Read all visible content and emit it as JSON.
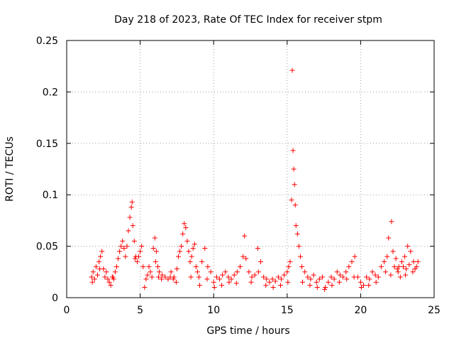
{
  "chart_data": {
    "type": "scatter",
    "title": "Day 218 of 2023, Rate Of TEC Index for receiver stpm",
    "xlabel": "GPS time / hours",
    "ylabel": "ROTI / TECUs",
    "xlim": [
      0,
      25
    ],
    "ylim": [
      0,
      0.25
    ],
    "xticks": [
      "0",
      "5",
      "10",
      "15",
      "20",
      "25"
    ],
    "yticks": [
      "0",
      "0.05",
      "0.1",
      "0.15",
      "0.2",
      "0.25"
    ],
    "grid": true,
    "marker": "+",
    "color": "#ff0000",
    "series": [
      {
        "name": "ROTI",
        "points": [
          [
            1.7,
            0.02
          ],
          [
            1.8,
            0.025
          ],
          [
            1.9,
            0.018
          ],
          [
            2.0,
            0.03
          ],
          [
            2.1,
            0.022
          ],
          [
            2.2,
            0.035
          ],
          [
            2.3,
            0.04
          ],
          [
            2.4,
            0.045
          ],
          [
            2.5,
            0.028
          ],
          [
            2.6,
            0.02
          ],
          [
            2.7,
            0.025
          ],
          [
            2.8,
            0.018
          ],
          [
            2.9,
            0.015
          ],
          [
            3.0,
            0.012
          ],
          [
            3.1,
            0.02
          ],
          [
            3.2,
            0.018
          ],
          [
            3.3,
            0.025
          ],
          [
            3.4,
            0.03
          ],
          [
            3.5,
            0.038
          ],
          [
            3.6,
            0.045
          ],
          [
            3.7,
            0.05
          ],
          [
            3.8,
            0.055
          ],
          [
            3.9,
            0.048
          ],
          [
            4.0,
            0.04
          ],
          [
            4.1,
            0.05
          ],
          [
            4.2,
            0.065
          ],
          [
            4.3,
            0.078
          ],
          [
            4.4,
            0.088
          ],
          [
            4.45,
            0.093
          ],
          [
            4.5,
            0.07
          ],
          [
            4.6,
            0.055
          ],
          [
            4.7,
            0.04
          ],
          [
            4.8,
            0.035
          ],
          [
            4.9,
            0.04
          ],
          [
            5.0,
            0.045
          ],
          [
            5.1,
            0.05
          ],
          [
            5.2,
            0.03
          ],
          [
            5.3,
            0.01
          ],
          [
            5.4,
            0.018
          ],
          [
            5.5,
            0.022
          ],
          [
            5.6,
            0.03
          ],
          [
            5.7,
            0.025
          ],
          [
            5.8,
            0.02
          ],
          [
            5.9,
            0.048
          ],
          [
            6.0,
            0.058
          ],
          [
            6.1,
            0.045
          ],
          [
            6.2,
            0.03
          ],
          [
            6.3,
            0.025
          ],
          [
            6.5,
            0.022
          ],
          [
            6.7,
            0.02
          ],
          [
            6.9,
            0.018
          ],
          [
            7.1,
            0.025
          ],
          [
            7.3,
            0.02
          ],
          [
            7.5,
            0.028
          ],
          [
            7.6,
            0.04
          ],
          [
            7.7,
            0.045
          ],
          [
            7.8,
            0.05
          ],
          [
            7.9,
            0.062
          ],
          [
            8.0,
            0.072
          ],
          [
            8.1,
            0.068
          ],
          [
            8.2,
            0.055
          ],
          [
            8.3,
            0.045
          ],
          [
            8.4,
            0.035
          ],
          [
            8.5,
            0.04
          ],
          [
            8.6,
            0.048
          ],
          [
            8.7,
            0.052
          ],
          [
            8.8,
            0.03
          ],
          [
            8.9,
            0.025
          ],
          [
            9.0,
            0.02
          ],
          [
            9.2,
            0.035
          ],
          [
            9.4,
            0.048
          ],
          [
            9.6,
            0.03
          ],
          [
            9.8,
            0.025
          ],
          [
            10.0,
            0.015
          ],
          [
            10.2,
            0.02
          ],
          [
            10.4,
            0.018
          ],
          [
            10.6,
            0.022
          ],
          [
            10.8,
            0.025
          ],
          [
            11.0,
            0.02
          ],
          [
            11.2,
            0.018
          ],
          [
            11.4,
            0.022
          ],
          [
            11.6,
            0.025
          ],
          [
            11.8,
            0.03
          ],
          [
            12.0,
            0.04
          ],
          [
            12.1,
            0.06
          ],
          [
            12.2,
            0.038
          ],
          [
            12.4,
            0.025
          ],
          [
            12.6,
            0.02
          ],
          [
            12.8,
            0.022
          ],
          [
            13.0,
            0.048
          ],
          [
            13.2,
            0.035
          ],
          [
            13.4,
            0.02
          ],
          [
            13.6,
            0.018
          ],
          [
            13.8,
            0.015
          ],
          [
            14.0,
            0.018
          ],
          [
            14.2,
            0.016
          ],
          [
            14.4,
            0.02
          ],
          [
            14.6,
            0.018
          ],
          [
            14.8,
            0.022
          ],
          [
            15.0,
            0.025
          ],
          [
            15.1,
            0.03
          ],
          [
            15.2,
            0.035
          ],
          [
            15.3,
            0.095
          ],
          [
            15.35,
            0.221
          ],
          [
            15.4,
            0.143
          ],
          [
            15.45,
            0.125
          ],
          [
            15.5,
            0.11
          ],
          [
            15.55,
            0.09
          ],
          [
            15.6,
            0.07
          ],
          [
            15.7,
            0.062
          ],
          [
            15.8,
            0.05
          ],
          [
            15.9,
            0.04
          ],
          [
            16.0,
            0.03
          ],
          [
            16.2,
            0.025
          ],
          [
            16.4,
            0.02
          ],
          [
            16.6,
            0.018
          ],
          [
            16.8,
            0.022
          ],
          [
            17.0,
            0.015
          ],
          [
            17.2,
            0.018
          ],
          [
            17.4,
            0.02
          ],
          [
            17.6,
            0.01
          ],
          [
            17.8,
            0.015
          ],
          [
            18.0,
            0.02
          ],
          [
            18.2,
            0.018
          ],
          [
            18.4,
            0.025
          ],
          [
            18.6,
            0.022
          ],
          [
            18.8,
            0.02
          ],
          [
            19.0,
            0.025
          ],
          [
            19.2,
            0.03
          ],
          [
            19.4,
            0.035
          ],
          [
            19.6,
            0.04
          ],
          [
            19.8,
            0.02
          ],
          [
            20.0,
            0.015
          ],
          [
            20.2,
            0.012
          ],
          [
            20.4,
            0.02
          ],
          [
            20.6,
            0.018
          ],
          [
            20.8,
            0.025
          ],
          [
            21.0,
            0.022
          ],
          [
            21.2,
            0.02
          ],
          [
            21.4,
            0.03
          ],
          [
            21.6,
            0.035
          ],
          [
            21.8,
            0.04
          ],
          [
            21.9,
            0.058
          ],
          [
            22.1,
            0.074
          ],
          [
            22.2,
            0.045
          ],
          [
            22.4,
            0.038
          ],
          [
            22.6,
            0.03
          ],
          [
            22.8,
            0.035
          ],
          [
            23.0,
            0.04
          ],
          [
            23.2,
            0.05
          ],
          [
            23.4,
            0.045
          ],
          [
            23.6,
            0.035
          ],
          [
            23.8,
            0.03
          ],
          [
            1.75,
            0.015
          ],
          [
            2.25,
            0.028
          ],
          [
            3.15,
            0.02
          ],
          [
            4.65,
            0.038
          ],
          [
            6.05,
            0.035
          ],
          [
            6.25,
            0.02
          ],
          [
            6.45,
            0.018
          ],
          [
            7.05,
            0.02
          ],
          [
            7.25,
            0.018
          ],
          [
            7.45,
            0.015
          ],
          [
            8.45,
            0.02
          ],
          [
            9.05,
            0.012
          ],
          [
            9.55,
            0.018
          ],
          [
            10.05,
            0.01
          ],
          [
            10.55,
            0.012
          ],
          [
            11.05,
            0.015
          ],
          [
            11.55,
            0.014
          ],
          [
            12.55,
            0.015
          ],
          [
            13.05,
            0.025
          ],
          [
            13.55,
            0.012
          ],
          [
            14.05,
            0.01
          ],
          [
            14.55,
            0.012
          ],
          [
            15.05,
            0.015
          ],
          [
            16.05,
            0.015
          ],
          [
            16.55,
            0.012
          ],
          [
            17.05,
            0.01
          ],
          [
            17.55,
            0.008
          ],
          [
            18.05,
            0.012
          ],
          [
            18.55,
            0.015
          ],
          [
            19.05,
            0.018
          ],
          [
            19.55,
            0.02
          ],
          [
            20.05,
            0.01
          ],
          [
            20.55,
            0.012
          ],
          [
            21.05,
            0.015
          ],
          [
            22.05,
            0.022
          ],
          [
            22.55,
            0.025
          ],
          [
            23.05,
            0.022
          ],
          [
            23.55,
            0.025
          ],
          [
            22.7,
            0.02
          ],
          [
            22.9,
            0.03
          ],
          [
            23.1,
            0.028
          ],
          [
            23.3,
            0.032
          ],
          [
            23.7,
            0.028
          ],
          [
            23.9,
            0.035
          ],
          [
            22.3,
            0.03
          ],
          [
            22.5,
            0.028
          ],
          [
            21.7,
            0.025
          ]
        ]
      }
    ]
  }
}
